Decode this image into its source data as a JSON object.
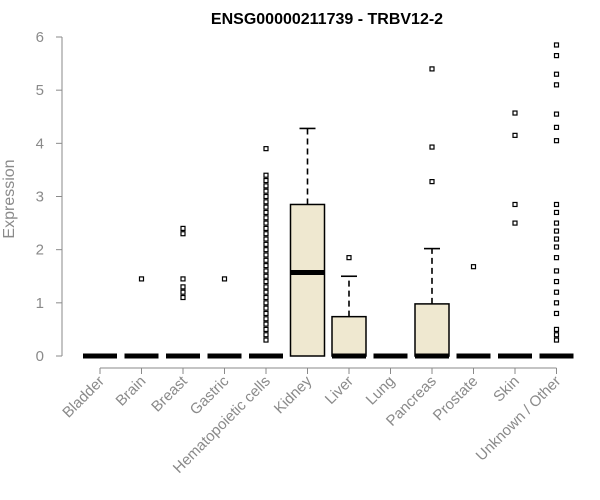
{
  "chart_data": {
    "type": "boxplot",
    "title": "ENSG00000211739 - TRBV12-2",
    "xlabel": "",
    "ylabel": "Expression",
    "ylim": [
      0,
      6
    ],
    "yticks": [
      0,
      1,
      2,
      3,
      4,
      5,
      6
    ],
    "categories": [
      "Bladder",
      "Brain",
      "Breast",
      "Gastric",
      "Hematopoietic cells",
      "Kidney",
      "Liver",
      "Lung",
      "Pancreas",
      "Prostate",
      "Skin",
      "Unknown / Other"
    ],
    "boxes": [
      {
        "category": "Bladder",
        "q1": 0,
        "median": 0,
        "q3": 0,
        "whisker_low": 0,
        "whisker_high": 0,
        "outliers": []
      },
      {
        "category": "Brain",
        "q1": 0,
        "median": 0,
        "q3": 0,
        "whisker_low": 0,
        "whisker_high": 0,
        "outliers": [
          1.45
        ]
      },
      {
        "category": "Breast",
        "q1": 0,
        "median": 0,
        "q3": 0,
        "whisker_low": 0,
        "whisker_high": 0,
        "outliers": [
          1.1,
          1.2,
          1.3,
          1.45,
          2.3,
          2.4
        ]
      },
      {
        "category": "Gastric",
        "q1": 0,
        "median": 0,
        "q3": 0,
        "whisker_low": 0,
        "whisker_high": 0,
        "outliers": [
          1.45
        ]
      },
      {
        "category": "Hematopoietic cells",
        "q1": 0,
        "median": 0,
        "q3": 0,
        "whisker_low": 0,
        "whisker_high": 0,
        "outliers": [
          0.3,
          0.4,
          0.5,
          0.6,
          0.7,
          0.8,
          0.9,
          1.0,
          1.1,
          1.2,
          1.3,
          1.4,
          1.5,
          1.6,
          1.7,
          1.8,
          1.9,
          2.0,
          2.1,
          2.2,
          2.3,
          2.4,
          2.5,
          2.6,
          2.7,
          2.8,
          2.9,
          3.0,
          3.1,
          3.2,
          3.3,
          3.4,
          3.9
        ]
      },
      {
        "category": "Kidney",
        "q1": 0,
        "median": 1.57,
        "q3": 2.85,
        "whisker_low": 0,
        "whisker_high": 4.28,
        "outliers": []
      },
      {
        "category": "Liver",
        "q1": 0,
        "median": 0,
        "q3": 0.74,
        "whisker_low": 0,
        "whisker_high": 1.5,
        "outliers": [
          1.85
        ]
      },
      {
        "category": "Lung",
        "q1": 0,
        "median": 0,
        "q3": 0,
        "whisker_low": 0,
        "whisker_high": 0,
        "outliers": []
      },
      {
        "category": "Pancreas",
        "q1": 0,
        "median": 0,
        "q3": 0.98,
        "whisker_low": 0,
        "whisker_high": 2.02,
        "outliers": [
          3.28,
          3.93,
          5.4
        ]
      },
      {
        "category": "Prostate",
        "q1": 0,
        "median": 0,
        "q3": 0,
        "whisker_low": 0,
        "whisker_high": 0,
        "outliers": [
          1.68
        ]
      },
      {
        "category": "Skin",
        "q1": 0,
        "median": 0,
        "q3": 0,
        "whisker_low": 0,
        "whisker_high": 0,
        "outliers": [
          2.5,
          2.85,
          4.15,
          4.57
        ]
      },
      {
        "category": "Unknown / Other",
        "q1": 0,
        "median": 0,
        "q3": 0,
        "whisker_low": 0,
        "whisker_high": 0,
        "outliers": [
          0.3,
          0.4,
          0.5,
          0.8,
          1.0,
          1.2,
          1.4,
          1.6,
          1.85,
          2.05,
          2.2,
          2.35,
          2.5,
          2.7,
          2.85,
          4.05,
          4.3,
          4.55,
          5.1,
          5.3,
          5.65,
          5.85
        ]
      }
    ],
    "colors": {
      "box_fill": "#efe8d0",
      "axis": "#8a8a8a",
      "line": "#000000"
    }
  }
}
